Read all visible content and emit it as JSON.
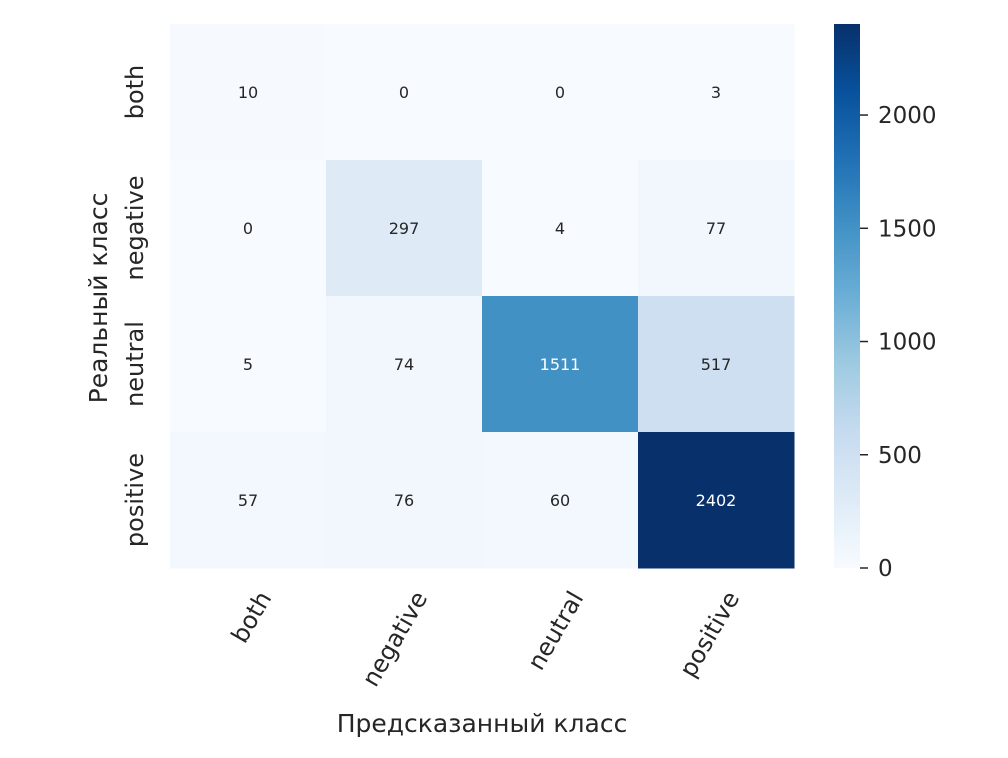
{
  "chart_data": {
    "type": "heatmap",
    "title": "",
    "xlabel": "Предсказанный класс",
    "ylabel": "Реальный класс",
    "x_categories": [
      "both",
      "negative",
      "neutral",
      "positive"
    ],
    "y_categories": [
      "both",
      "negative",
      "neutral",
      "positive"
    ],
    "values": [
      [
        10,
        0,
        0,
        3
      ],
      [
        0,
        297,
        4,
        77
      ],
      [
        5,
        74,
        1511,
        517
      ],
      [
        57,
        76,
        60,
        2402
      ]
    ],
    "colormap": "Blues",
    "colorbar": {
      "min": 0,
      "max": 2402,
      "ticks": [
        0,
        500,
        1000,
        1500,
        2000
      ]
    },
    "x_tick_rotation": 60,
    "grid": false
  }
}
